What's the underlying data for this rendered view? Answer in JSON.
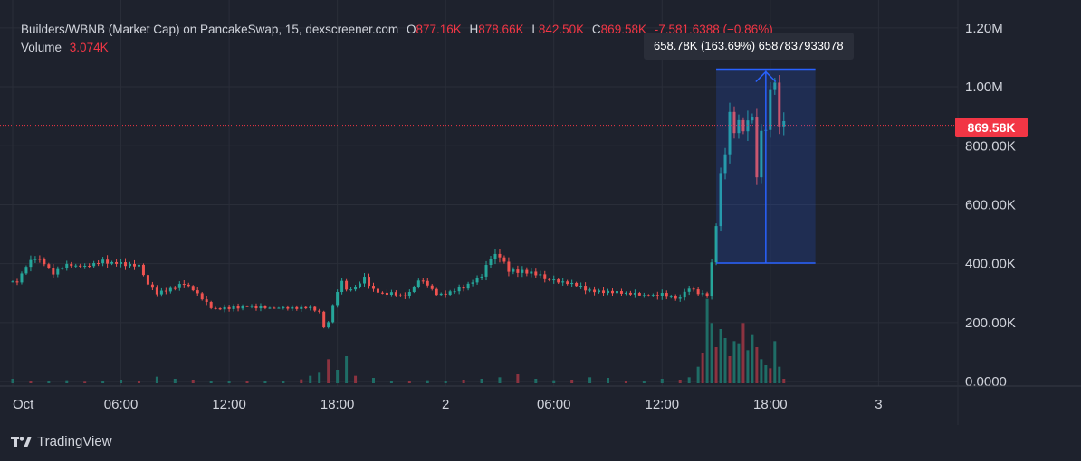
{
  "header": {
    "symbol": "Builders/WBNB (Market Cap) on PancakeSwap, 15, dexscreener.com",
    "o_label": "O",
    "o_value": "877.16K",
    "h_label": "H",
    "h_value": "878.66K",
    "l_label": "L",
    "l_value": "842.50K",
    "c_label": "C",
    "c_value": "869.58K",
    "change": "-7,581.6388 (−0.86%)",
    "volume_label": "Volume",
    "volume_value": "3.074K"
  },
  "measure_tool": {
    "label": "658.78K (163.69%) 6587837933078",
    "from_value": 402000,
    "to_value": 1060000,
    "from_time": "15:00",
    "to_time": "20:30"
  },
  "last_price": {
    "label": "869.58K",
    "value": 869580
  },
  "colors": {
    "up": "#26a69a",
    "down": "#ef5350",
    "up_volume": "#1f6d66",
    "down_volume": "#8c3340",
    "measure": "#2962ff",
    "background": "#1e222d",
    "grid": "#2a2e39",
    "price_line": "#f23645"
  },
  "logo": {
    "text": "TradingView",
    "icon": "tradingview-logo-icon"
  },
  "chart_data": {
    "type": "candlestick",
    "interval": "15m",
    "title": "Builders/WBNB (Market Cap) on PancakeSwap, 15, dexscreener.com",
    "y_axis": {
      "ticks": [
        0,
        200000,
        400000,
        600000,
        800000,
        1000000,
        1200000
      ],
      "tick_labels": [
        "0.0000",
        "200.00K",
        "400.00K",
        "600.00K",
        "800.00K",
        "1.00M",
        "1.20M"
      ],
      "ylim": [
        -15000,
        1270000
      ]
    },
    "x_axis": {
      "tick_labels": [
        "Oct",
        "06:00",
        "12:00",
        "18:00",
        "2",
        "06:00",
        "12:00",
        "18:00",
        "3"
      ],
      "tick_hours": [
        0,
        6,
        12,
        18,
        24,
        30,
        36,
        42,
        48
      ],
      "xlim_hours": [
        0,
        53
      ]
    },
    "grid": true,
    "close_hours": [
      0.25,
      0.75,
      1.25,
      1.75,
      2.25,
      3.0,
      4.0,
      5.0,
      6.0,
      7.0,
      7.5,
      8.0,
      8.5,
      9.0,
      9.5,
      10.0,
      10.5,
      11.0,
      11.5,
      12.0,
      13.0,
      14.0,
      15.0,
      16.0,
      16.5,
      17.0,
      17.25,
      17.5,
      17.75,
      18.0,
      18.25,
      18.5,
      19.0,
      19.5,
      20.0,
      20.5,
      21.0,
      21.5,
      22.0,
      22.5,
      23.0,
      23.5,
      24.0,
      25.0,
      26.0,
      26.5,
      27.0,
      27.5,
      28.0,
      29.0,
      30.0,
      31.0,
      32.0,
      33.0,
      34.0,
      35.0,
      36.0,
      37.0,
      37.5,
      38.0,
      38.5,
      38.75,
      39.0,
      39.25,
      39.5,
      39.75,
      40.0,
      40.25,
      40.5,
      40.75,
      41.0,
      41.25,
      41.5,
      41.75,
      42.0,
      42.25,
      42.5,
      42.75
    ],
    "closes": [
      340000,
      390000,
      420000,
      400000,
      370000,
      395000,
      390000,
      410000,
      400000,
      395000,
      330000,
      300000,
      310000,
      320000,
      335000,
      310000,
      280000,
      250000,
      245000,
      250000,
      255000,
      250000,
      250000,
      248000,
      250000,
      235000,
      185000,
      200000,
      260000,
      300000,
      345000,
      310000,
      320000,
      350000,
      310000,
      300000,
      300000,
      290000,
      300000,
      345000,
      330000,
      295000,
      300000,
      320000,
      360000,
      420000,
      430000,
      380000,
      375000,
      365000,
      340000,
      330000,
      310000,
      305000,
      300000,
      290000,
      295000,
      280000,
      320000,
      300000,
      290000,
      400000,
      530000,
      700000,
      780000,
      900000,
      850000,
      880000,
      850000,
      870000,
      900000,
      680000,
      860000,
      850000,
      1000000,
      1010000,
      877160,
      869580
    ],
    "volume_hours": [
      0,
      1,
      2,
      3,
      4,
      5,
      6,
      7,
      8,
      9,
      10,
      11,
      12,
      13,
      14,
      15,
      16,
      16.5,
      17,
      17.5,
      18,
      18.5,
      19,
      20,
      21,
      22,
      23,
      24,
      25,
      26,
      27,
      28,
      29,
      30,
      31,
      32,
      33,
      34,
      35,
      36,
      37,
      37.5,
      38,
      38.25,
      38.5,
      38.75,
      39,
      39.25,
      39.5,
      39.75,
      40,
      40.25,
      40.5,
      40.75,
      41,
      41.25,
      41.5,
      41.75,
      42,
      42.25,
      42.5,
      42.75
    ],
    "volumes": [
      15000,
      8000,
      6000,
      10000,
      5000,
      8000,
      12000,
      9000,
      22000,
      15000,
      12000,
      9000,
      8000,
      7000,
      6000,
      9000,
      13000,
      25000,
      35000,
      80000,
      45000,
      90000,
      25000,
      18000,
      9000,
      8000,
      10000,
      7000,
      12000,
      15000,
      20000,
      30000,
      15000,
      10000,
      12000,
      20000,
      18000,
      9000,
      7000,
      15000,
      12000,
      20000,
      55000,
      100000,
      280000,
      200000,
      120000,
      180000,
      150000,
      90000,
      140000,
      130000,
      200000,
      110000,
      160000,
      120000,
      80000,
      60000,
      50000,
      140000,
      55000,
      15000
    ]
  }
}
